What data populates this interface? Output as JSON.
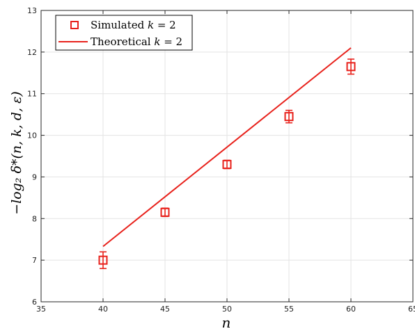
{
  "chart_data": {
    "type": "scatter",
    "xlabel": "n",
    "ylabel": "−log₂ δ*(n, k, d, ε)",
    "xlim": [
      35,
      65
    ],
    "ylim": [
      6,
      13
    ],
    "x_ticks": [
      "35",
      "40",
      "45",
      "50",
      "55",
      "60",
      "65"
    ],
    "y_ticks": [
      "6",
      "7",
      "8",
      "9",
      "10",
      "11",
      "12",
      "13"
    ],
    "grid": true,
    "legend_position": "top-left",
    "series": [
      {
        "name": "Simulated k = 2",
        "name_parts": [
          "Simulated ",
          "k",
          " = 2"
        ],
        "kind": "markers-with-errorbars",
        "marker": "square",
        "color": "#e8211b",
        "x": [
          40,
          45,
          50,
          55,
          60
        ],
        "y": [
          7.0,
          8.15,
          9.3,
          10.45,
          11.65
        ],
        "err": [
          0.2,
          0.1,
          0.1,
          0.15,
          0.18
        ]
      },
      {
        "name": "Theoretical k = 2",
        "name_parts": [
          "Theoretical ",
          "k",
          " = 2"
        ],
        "kind": "line",
        "color": "#e8211b",
        "x": [
          40,
          60
        ],
        "y": [
          7.33,
          12.1
        ]
      }
    ]
  }
}
